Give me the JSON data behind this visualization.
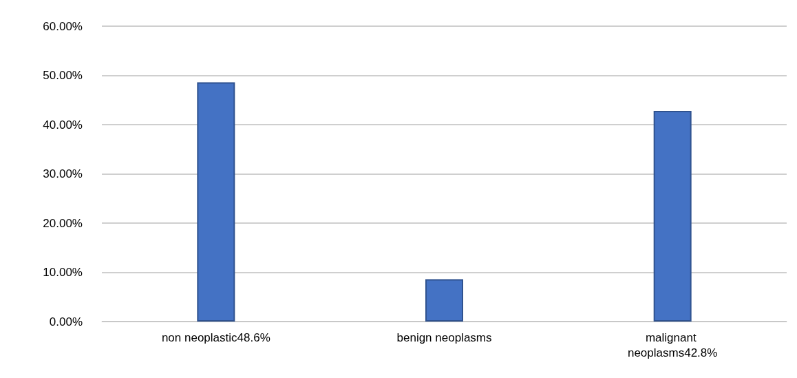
{
  "chart_data": {
    "type": "bar",
    "categories": [
      "non neoplastic48.6%",
      "benign neoplasms",
      "malignant neoplasms42.8%"
    ],
    "values": [
      48.6,
      8.6,
      42.8
    ],
    "color": "#4472c4",
    "ylim": [
      0,
      60
    ],
    "yticks": [
      {
        "value": 0,
        "label": "0.00%"
      },
      {
        "value": 10,
        "label": "10.00%"
      },
      {
        "value": 20,
        "label": "20.00%"
      },
      {
        "value": 30,
        "label": "30.00%"
      },
      {
        "value": 40,
        "label": "40.00%"
      },
      {
        "value": 50,
        "label": "50.00%"
      },
      {
        "value": 60,
        "label": "60.00%"
      }
    ],
    "grid": "y"
  }
}
